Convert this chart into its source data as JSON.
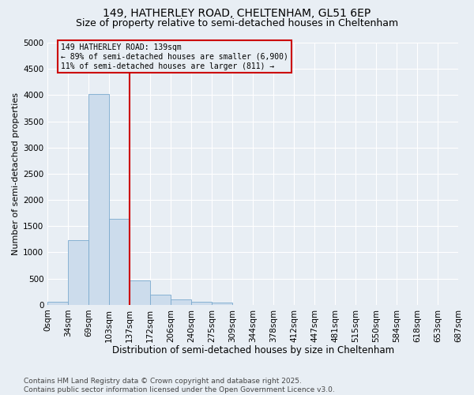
{
  "title": "149, HATHERLEY ROAD, CHELTENHAM, GL51 6EP",
  "subtitle": "Size of property relative to semi-detached houses in Cheltenham",
  "xlabel": "Distribution of semi-detached houses by size in Cheltenham",
  "ylabel": "Number of semi-detached properties",
  "footer_line1": "Contains HM Land Registry data © Crown copyright and database right 2025.",
  "footer_line2": "Contains public sector information licensed under the Open Government Licence v3.0.",
  "bin_labels": [
    "0sqm",
    "34sqm",
    "69sqm",
    "103sqm",
    "137sqm",
    "172sqm",
    "206sqm",
    "240sqm",
    "275sqm",
    "309sqm",
    "344sqm",
    "378sqm",
    "412sqm",
    "447sqm",
    "481sqm",
    "515sqm",
    "550sqm",
    "584sqm",
    "618sqm",
    "653sqm",
    "687sqm"
  ],
  "bar_values": [
    55,
    1230,
    4020,
    1640,
    470,
    195,
    110,
    65,
    45,
    0,
    0,
    0,
    0,
    0,
    0,
    0,
    0,
    0,
    0,
    0
  ],
  "bar_color": "#ccdcec",
  "bar_edge_color": "#7aaace",
  "vline_bin_index": 4,
  "vline_color": "#cc0000",
  "annotation_line1": "149 HATHERLEY ROAD: 139sqm",
  "annotation_line2": "← 89% of semi-detached houses are smaller (6,900)",
  "annotation_line3": "11% of semi-detached houses are larger (811) →",
  "annotation_box_color": "#cc0000",
  "ylim": [
    0,
    5000
  ],
  "yticks": [
    0,
    500,
    1000,
    1500,
    2000,
    2500,
    3000,
    3500,
    4000,
    4500,
    5000
  ],
  "bg_color": "#e8eef4",
  "grid_color": "#ffffff",
  "title_fontsize": 10,
  "subtitle_fontsize": 9,
  "xlabel_fontsize": 8.5,
  "ylabel_fontsize": 8,
  "tick_fontsize": 7.5,
  "footer_fontsize": 6.5
}
